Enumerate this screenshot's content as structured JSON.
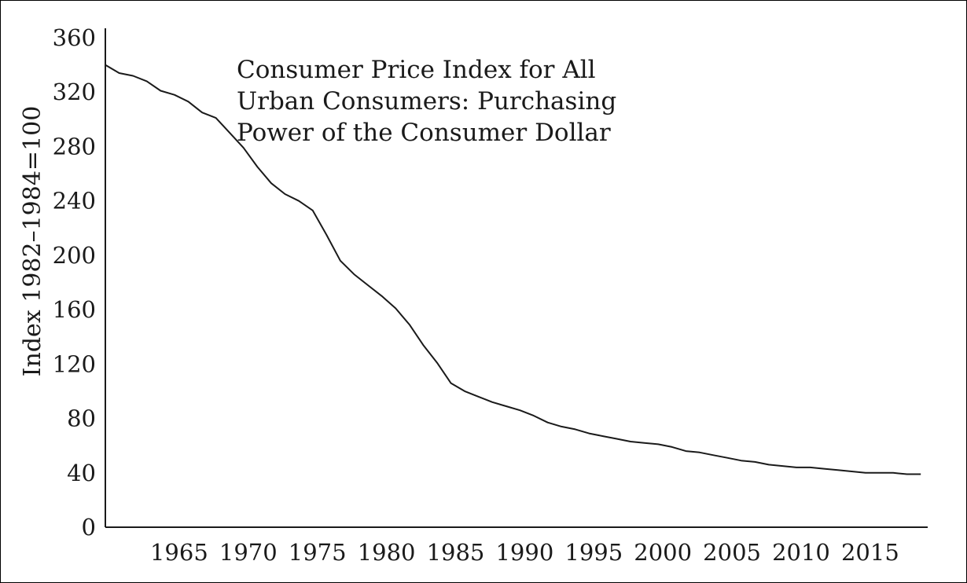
{
  "chart_data": {
    "type": "line",
    "title_lines": [
      "Consumer Price Index for All",
      "Urban Consumers: Purchasing",
      "Power of the Consumer Dollar"
    ],
    "xlabel": "",
    "ylabel": "Index 1982–1984=100",
    "xlim": [
      1960,
      2019.5
    ],
    "ylim": [
      0,
      360
    ],
    "x_ticks": [
      1965,
      1970,
      1975,
      1980,
      1985,
      1990,
      1995,
      2000,
      2005,
      2010,
      2015
    ],
    "y_ticks": [
      0,
      40,
      80,
      120,
      160,
      200,
      240,
      280,
      320,
      360
    ],
    "grid": false,
    "legend": "none",
    "line_color": "#1a1a1a",
    "series": [
      {
        "x": [
          1960,
          1961,
          1962,
          1963,
          1964,
          1965,
          1966,
          1967,
          1968,
          1969,
          1970,
          1971,
          1972,
          1973,
          1974,
          1975,
          1976,
          1977,
          1978,
          1979,
          1980,
          1981,
          1982,
          1983,
          1984,
          1985,
          1986,
          1987,
          1988,
          1989,
          1990,
          1991,
          1992,
          1993,
          1994,
          1995,
          1996,
          1997,
          1998,
          1999,
          2000,
          2001,
          2002,
          2003,
          2004,
          2005,
          2006,
          2007,
          2008,
          2009,
          2010,
          2011,
          2012,
          2013,
          2014,
          2015,
          2016,
          2017,
          2018,
          2019
        ],
        "values": [
          340,
          334,
          332,
          328,
          321,
          318,
          313,
          305,
          301,
          290,
          279,
          265,
          253,
          245,
          240,
          233,
          215,
          196,
          186,
          178,
          170,
          161,
          149,
          134,
          121,
          106,
          100,
          96,
          92,
          89,
          86,
          82,
          77,
          74,
          72,
          69,
          67,
          65,
          63,
          62,
          61,
          59,
          56,
          55,
          53,
          51,
          49,
          48,
          46,
          45,
          44,
          44,
          43,
          42,
          41,
          40,
          40,
          40,
          39,
          39
        ]
      }
    ]
  }
}
